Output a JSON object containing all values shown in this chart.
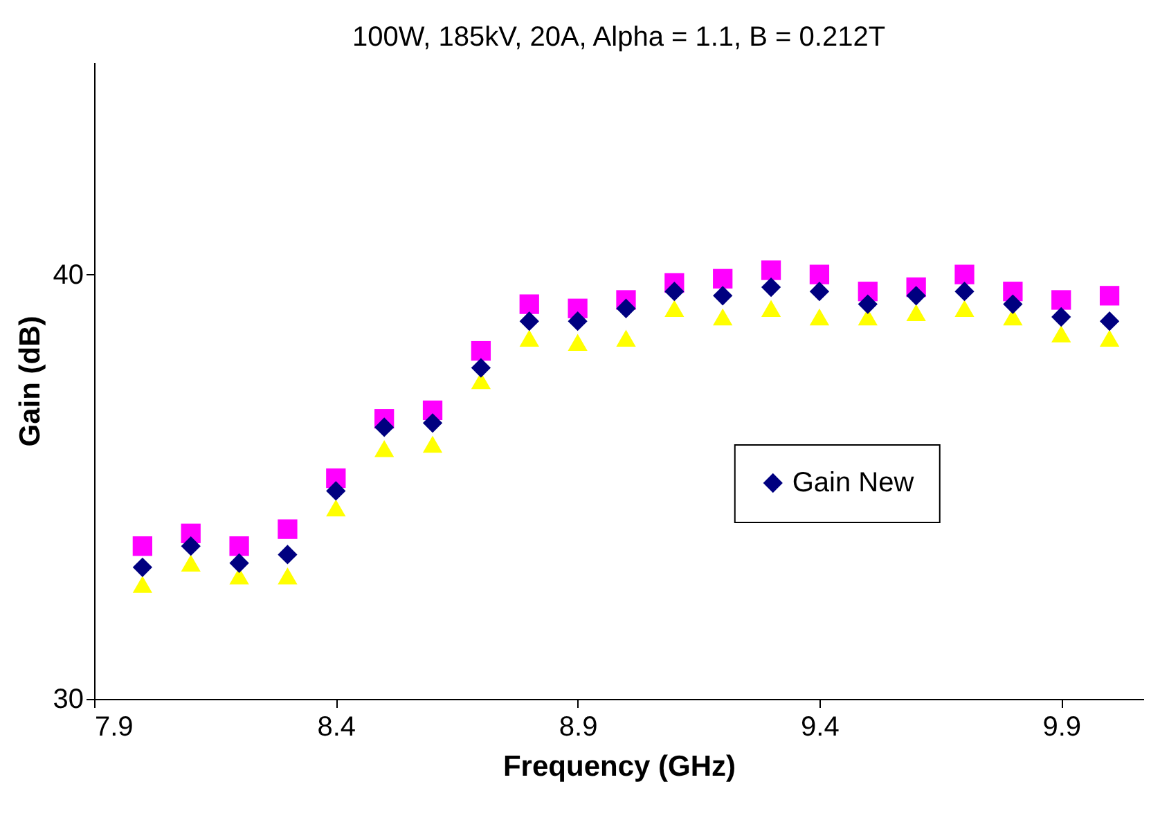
{
  "chart_data": {
    "type": "scatter",
    "title": "100W, 185kV, 20A, Alpha = 1.1,  B = 0.212T",
    "xlabel": "Frequency (GHz)",
    "ylabel": "Gain (dB)",
    "x": [
      8.0,
      8.1,
      8.2,
      8.3,
      8.4,
      8.5,
      8.6,
      8.7,
      8.8,
      8.9,
      9.0,
      9.1,
      9.2,
      9.3,
      9.4,
      9.5,
      9.6,
      9.7,
      9.8,
      9.9,
      10.0
    ],
    "series": [
      {
        "name": "Gain New",
        "color": "#000080",
        "marker": "diamond",
        "values": [
          33.1,
          33.6,
          33.2,
          33.4,
          34.9,
          36.4,
          36.5,
          37.8,
          38.9,
          38.9,
          39.2,
          39.6,
          39.5,
          39.7,
          39.6,
          39.3,
          39.5,
          39.6,
          39.3,
          39.0,
          38.9
        ]
      },
      {
        "color": "#ff00ff",
        "marker": "square",
        "values": [
          33.6,
          33.9,
          33.6,
          34.0,
          35.2,
          36.6,
          36.8,
          38.2,
          39.3,
          39.2,
          39.4,
          39.8,
          39.9,
          40.1,
          40.0,
          39.6,
          39.7,
          40.0,
          39.6,
          39.4,
          39.5
        ]
      },
      {
        "color": "#ffff00",
        "marker": "triangle",
        "values": [
          32.7,
          33.2,
          32.9,
          32.9,
          34.5,
          35.9,
          36.0,
          37.5,
          38.5,
          38.4,
          38.5,
          39.2,
          39.0,
          39.2,
          39.0,
          39.0,
          39.1,
          39.2,
          39.0,
          38.6,
          38.5
        ]
      }
    ],
    "xlim": [
      7.9,
      10.07
    ],
    "xticks": [
      7.9,
      8.4,
      8.9,
      9.4,
      9.9
    ],
    "ylim": [
      30,
      45
    ],
    "yticks": [
      30,
      40
    ],
    "grid": false,
    "legend": "right"
  }
}
